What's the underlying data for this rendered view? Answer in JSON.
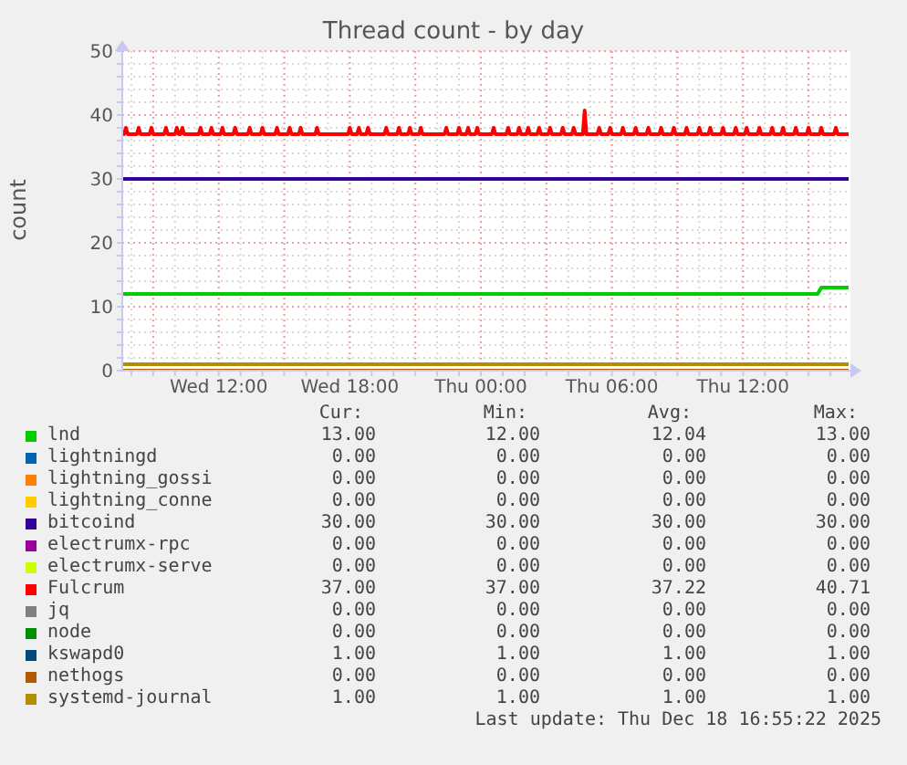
{
  "chart_data": {
    "type": "line",
    "title": "Thread count - by day",
    "ylabel": "count",
    "xlim": [
      "2025-12-17T07:35",
      "2025-12-18T16:55"
    ],
    "xticks": [
      {
        "value": "2025-12-17T08:00",
        "label": null
      },
      {
        "value": "2025-12-17T09:00",
        "label": null
      },
      {
        "value": "2025-12-17T10:00",
        "label": null
      },
      {
        "value": "2025-12-17T11:00",
        "label": null
      },
      {
        "value": "2025-12-17T12:00",
        "label": "Wed 12:00"
      },
      {
        "value": "2025-12-17T13:00",
        "label": null
      },
      {
        "value": "2025-12-17T14:00",
        "label": null
      },
      {
        "value": "2025-12-17T15:00",
        "label": null
      },
      {
        "value": "2025-12-17T16:00",
        "label": null
      },
      {
        "value": "2025-12-17T17:00",
        "label": null
      },
      {
        "value": "2025-12-17T18:00",
        "label": "Wed 18:00"
      },
      {
        "value": "2025-12-17T19:00",
        "label": null
      },
      {
        "value": "2025-12-17T20:00",
        "label": null
      },
      {
        "value": "2025-12-17T21:00",
        "label": null
      },
      {
        "value": "2025-12-17T22:00",
        "label": null
      },
      {
        "value": "2025-12-17T23:00",
        "label": null
      },
      {
        "value": "2025-12-18T00:00",
        "label": "Thu 00:00"
      },
      {
        "value": "2025-12-18T01:00",
        "label": null
      },
      {
        "value": "2025-12-18T02:00",
        "label": null
      },
      {
        "value": "2025-12-18T03:00",
        "label": null
      },
      {
        "value": "2025-12-18T04:00",
        "label": null
      },
      {
        "value": "2025-12-18T05:00",
        "label": null
      },
      {
        "value": "2025-12-18T06:00",
        "label": "Thu 06:00"
      },
      {
        "value": "2025-12-18T07:00",
        "label": null
      },
      {
        "value": "2025-12-18T08:00",
        "label": null
      },
      {
        "value": "2025-12-18T09:00",
        "label": null
      },
      {
        "value": "2025-12-18T10:00",
        "label": null
      },
      {
        "value": "2025-12-18T11:00",
        "label": null
      },
      {
        "value": "2025-12-18T12:00",
        "label": "Thu 12:00"
      },
      {
        "value": "2025-12-18T13:00",
        "label": null
      },
      {
        "value": "2025-12-18T14:00",
        "label": null
      },
      {
        "value": "2025-12-18T15:00",
        "label": null
      },
      {
        "value": "2025-12-18T16:00",
        "label": null
      }
    ],
    "ylim": [
      0,
      50
    ],
    "yticks": [
      0,
      {
        "value": 2,
        "label": null
      },
      {
        "value": 4,
        "label": null
      },
      {
        "value": 6,
        "label": null
      },
      {
        "value": 8,
        "label": null
      },
      10,
      {
        "value": 12,
        "label": null
      },
      {
        "value": 14,
        "label": null
      },
      {
        "value": 16,
        "label": null
      },
      {
        "value": 18,
        "label": null
      },
      20,
      {
        "value": 22,
        "label": null
      },
      {
        "value": 24,
        "label": null
      },
      {
        "value": 26,
        "label": null
      },
      {
        "value": 28,
        "label": null
      },
      30,
      {
        "value": 32,
        "label": null
      },
      {
        "value": 34,
        "label": null
      },
      {
        "value": 36,
        "label": null
      },
      {
        "value": 38,
        "label": null
      },
      40,
      {
        "value": 42,
        "label": null
      },
      {
        "value": 44,
        "label": null
      },
      {
        "value": 46,
        "label": null
      },
      {
        "value": 48,
        "label": null
      },
      50
    ],
    "grid": true,
    "legend": "bottom",
    "series": [
      {
        "name": "lnd",
        "color": "#00cc00",
        "x": [
          "2025-12-17T07:35",
          "2025-12-18T15:25",
          "2025-12-18T15:35",
          "2025-12-18T16:50"
        ],
        "values": [
          12,
          12,
          13,
          13
        ]
      },
      {
        "name": "lightningd",
        "color": "#0066b3"
      },
      {
        "name": "lightning_gossi",
        "color": "#ff8000"
      },
      {
        "name": "lightning_conne",
        "color": "#ffcc00"
      },
      {
        "name": "bitcoind",
        "color": "#330099",
        "x": [
          "2025-12-17T07:35",
          "2025-12-18T16:50"
        ],
        "values": [
          30,
          30
        ]
      },
      {
        "name": "electrumx-rpc",
        "color": "#990099"
      },
      {
        "name": "electrumx-serve",
        "color": "#ccff00"
      },
      {
        "name": "Fulcrum",
        "color": "#ff0000",
        "x": [
          "2025-12-17T07:35",
          "2025-12-17T07:40",
          "2025-12-17T07:45",
          "2025-12-17T07:50",
          "2025-12-17T08:15",
          "2025-12-17T08:20",
          "2025-12-17T08:25",
          "2025-12-17T08:50",
          "2025-12-17T08:55",
          "2025-12-17T09:00",
          "2025-12-17T09:30",
          "2025-12-17T09:35",
          "2025-12-17T09:40",
          "2025-12-17T10:00",
          "2025-12-17T10:05",
          "2025-12-17T10:10",
          "2025-12-17T10:15",
          "2025-12-17T10:20",
          "2025-12-17T10:25",
          "2025-12-17T11:05",
          "2025-12-17T11:10",
          "2025-12-17T11:15",
          "2025-12-17T11:35",
          "2025-12-17T11:40",
          "2025-12-17T11:45",
          "2025-12-17T12:05",
          "2025-12-17T12:10",
          "2025-12-17T12:15",
          "2025-12-17T12:40",
          "2025-12-17T12:45",
          "2025-12-17T12:50",
          "2025-12-17T13:20",
          "2025-12-17T13:25",
          "2025-12-17T13:30",
          "2025-12-17T13:55",
          "2025-12-17T14:00",
          "2025-12-17T14:05",
          "2025-12-17T14:35",
          "2025-12-17T14:40",
          "2025-12-17T14:45",
          "2025-12-17T15:10",
          "2025-12-17T15:15",
          "2025-12-17T15:20",
          "2025-12-17T15:40",
          "2025-12-17T15:45",
          "2025-12-17T15:50",
          "2025-12-17T16:25",
          "2025-12-17T16:30",
          "2025-12-17T16:35",
          "2025-12-17T17:55",
          "2025-12-17T18:00",
          "2025-12-17T18:05",
          "2025-12-17T18:20",
          "2025-12-17T18:25",
          "2025-12-17T18:30",
          "2025-12-17T18:45",
          "2025-12-17T18:50",
          "2025-12-17T18:55",
          "2025-12-17T19:35",
          "2025-12-17T19:40",
          "2025-12-17T19:45",
          "2025-12-17T20:10",
          "2025-12-17T20:15",
          "2025-12-17T20:20",
          "2025-12-17T20:40",
          "2025-12-17T20:45",
          "2025-12-17T20:50",
          "2025-12-17T21:10",
          "2025-12-17T21:15",
          "2025-12-17T21:20",
          "2025-12-17T22:20",
          "2025-12-17T22:25",
          "2025-12-17T22:30",
          "2025-12-17T22:55",
          "2025-12-17T23:00",
          "2025-12-17T23:05",
          "2025-12-17T23:20",
          "2025-12-17T23:25",
          "2025-12-17T23:30",
          "2025-12-17T23:45",
          "2025-12-17T23:50",
          "2025-12-17T23:55",
          "2025-12-18T00:30",
          "2025-12-18T00:35",
          "2025-12-18T00:40",
          "2025-12-18T01:10",
          "2025-12-18T01:15",
          "2025-12-18T01:20",
          "2025-12-18T01:40",
          "2025-12-18T01:45",
          "2025-12-18T01:50",
          "2025-12-18T02:05",
          "2025-12-18T02:10",
          "2025-12-18T02:15",
          "2025-12-18T02:35",
          "2025-12-18T02:40",
          "2025-12-18T02:45",
          "2025-12-18T03:05",
          "2025-12-18T03:10",
          "2025-12-18T03:15",
          "2025-12-18T03:40",
          "2025-12-18T03:45",
          "2025-12-18T03:50",
          "2025-12-18T04:10",
          "2025-12-18T04:15",
          "2025-12-18T04:20",
          "2025-12-18T04:40",
          "2025-12-18T04:45",
          "2025-12-18T04:50",
          "2025-12-18T05:20",
          "2025-12-18T05:25",
          "2025-12-18T05:30",
          "2025-12-18T05:50",
          "2025-12-18T05:55",
          "2025-12-18T06:00",
          "2025-12-18T06:25",
          "2025-12-18T06:30",
          "2025-12-18T06:35",
          "2025-12-18T07:00",
          "2025-12-18T07:05",
          "2025-12-18T07:10",
          "2025-12-18T07:35",
          "2025-12-18T07:40",
          "2025-12-18T07:45",
          "2025-12-18T08:10",
          "2025-12-18T08:15",
          "2025-12-18T08:20",
          "2025-12-18T08:45",
          "2025-12-18T08:50",
          "2025-12-18T08:55",
          "2025-12-18T09:20",
          "2025-12-18T09:25",
          "2025-12-18T09:30",
          "2025-12-18T09:55",
          "2025-12-18T10:00",
          "2025-12-18T10:05",
          "2025-12-18T10:25",
          "2025-12-18T10:30",
          "2025-12-18T10:35",
          "2025-12-18T11:00",
          "2025-12-18T11:05",
          "2025-12-18T11:10",
          "2025-12-18T11:35",
          "2025-12-18T11:40",
          "2025-12-18T11:45",
          "2025-12-18T12:05",
          "2025-12-18T12:10",
          "2025-12-18T12:15",
          "2025-12-18T12:40",
          "2025-12-18T12:45",
          "2025-12-18T12:50",
          "2025-12-18T13:15",
          "2025-12-18T13:20",
          "2025-12-18T13:25",
          "2025-12-18T13:45",
          "2025-12-18T13:50",
          "2025-12-18T13:55",
          "2025-12-18T14:20",
          "2025-12-18T14:25",
          "2025-12-18T14:30",
          "2025-12-18T14:55",
          "2025-12-18T15:00",
          "2025-12-18T15:05",
          "2025-12-18T15:30",
          "2025-12-18T15:35",
          "2025-12-18T15:40",
          "2025-12-18T16:10",
          "2025-12-18T16:15",
          "2025-12-18T16:20",
          "2025-12-18T16:50"
        ],
        "values": [
          37,
          37,
          38,
          37,
          37,
          38,
          37,
          37,
          38,
          37,
          37,
          38,
          37,
          37,
          38,
          37,
          37,
          38,
          37,
          37,
          38,
          37,
          37,
          38,
          37,
          37,
          38,
          37,
          37,
          38,
          37,
          37,
          38,
          37,
          37,
          38,
          37,
          37,
          38,
          37,
          37,
          38,
          37,
          37,
          38,
          37,
          37,
          38,
          37,
          37,
          38,
          37,
          37,
          38,
          37,
          37,
          38,
          37,
          37,
          38,
          37,
          37,
          38,
          37,
          37,
          38,
          37,
          37,
          38,
          37,
          37,
          38,
          37,
          37,
          38,
          37,
          37,
          38,
          37,
          37,
          38,
          37,
          37,
          38,
          37,
          37,
          38,
          37,
          37,
          38,
          37,
          37,
          38,
          37,
          37,
          38,
          37,
          37,
          38,
          37,
          37,
          38,
          37,
          37,
          38,
          37,
          37,
          40.71,
          37,
          37,
          38,
          37,
          37,
          38,
          37,
          37,
          38,
          37,
          37,
          38,
          37,
          37,
          38,
          37,
          37,
          38,
          37,
          37,
          38,
          37,
          37,
          38,
          37,
          37,
          38,
          37,
          37,
          38,
          37,
          37,
          38,
          37,
          37,
          38,
          37,
          37,
          38,
          37,
          37,
          38,
          37,
          37,
          38,
          37,
          37,
          38,
          37,
          37,
          38,
          37,
          37,
          38,
          37,
          37,
          38,
          37,
          37,
          38,
          37,
          37
        ]
      },
      {
        "name": "jq",
        "color": "#808080"
      },
      {
        "name": "node",
        "color": "#008f00"
      },
      {
        "name": "kswapd0",
        "color": "#00487d"
      },
      {
        "name": "nethogs",
        "color": "#b35a00",
        "x": [
          "2025-12-17T07:35",
          "2025-12-18T16:50"
        ],
        "values": [
          0,
          0
        ]
      },
      {
        "name": "systemd-journal",
        "color": "#b38f00",
        "x": [
          "2025-12-17T07:35",
          "2025-12-18T16:50"
        ],
        "values": [
          1,
          1
        ]
      }
    ],
    "annotations": [
      "Cur:",
      "Min:",
      "Avg:",
      "Max:",
      "13.00",
      "12.00",
      "12.04",
      "13.00",
      "0.00",
      "0.00",
      "0.00",
      "0.00",
      "0.00",
      "0.00",
      "0.00",
      "0.00",
      "0.00",
      "0.00",
      "0.00",
      "0.00",
      "30.00",
      "30.00",
      "30.00",
      "30.00",
      "0.00",
      "0.00",
      "0.00",
      "0.00",
      "0.00",
      "0.00",
      "0.00",
      "0.00",
      "37.00",
      "37.00",
      "37.22",
      "40.71",
      "0.00",
      "0.00",
      "0.00",
      "0.00",
      "0.00",
      "0.00",
      "0.00",
      "0.00",
      "1.00",
      "1.00",
      "1.00",
      "1.00",
      "0.00",
      "0.00",
      "0.00",
      "0.00",
      "1.00",
      "1.00",
      "1.00",
      "1.00",
      "Last update: Thu Dec 18 16:55:22 2025"
    ]
  }
}
